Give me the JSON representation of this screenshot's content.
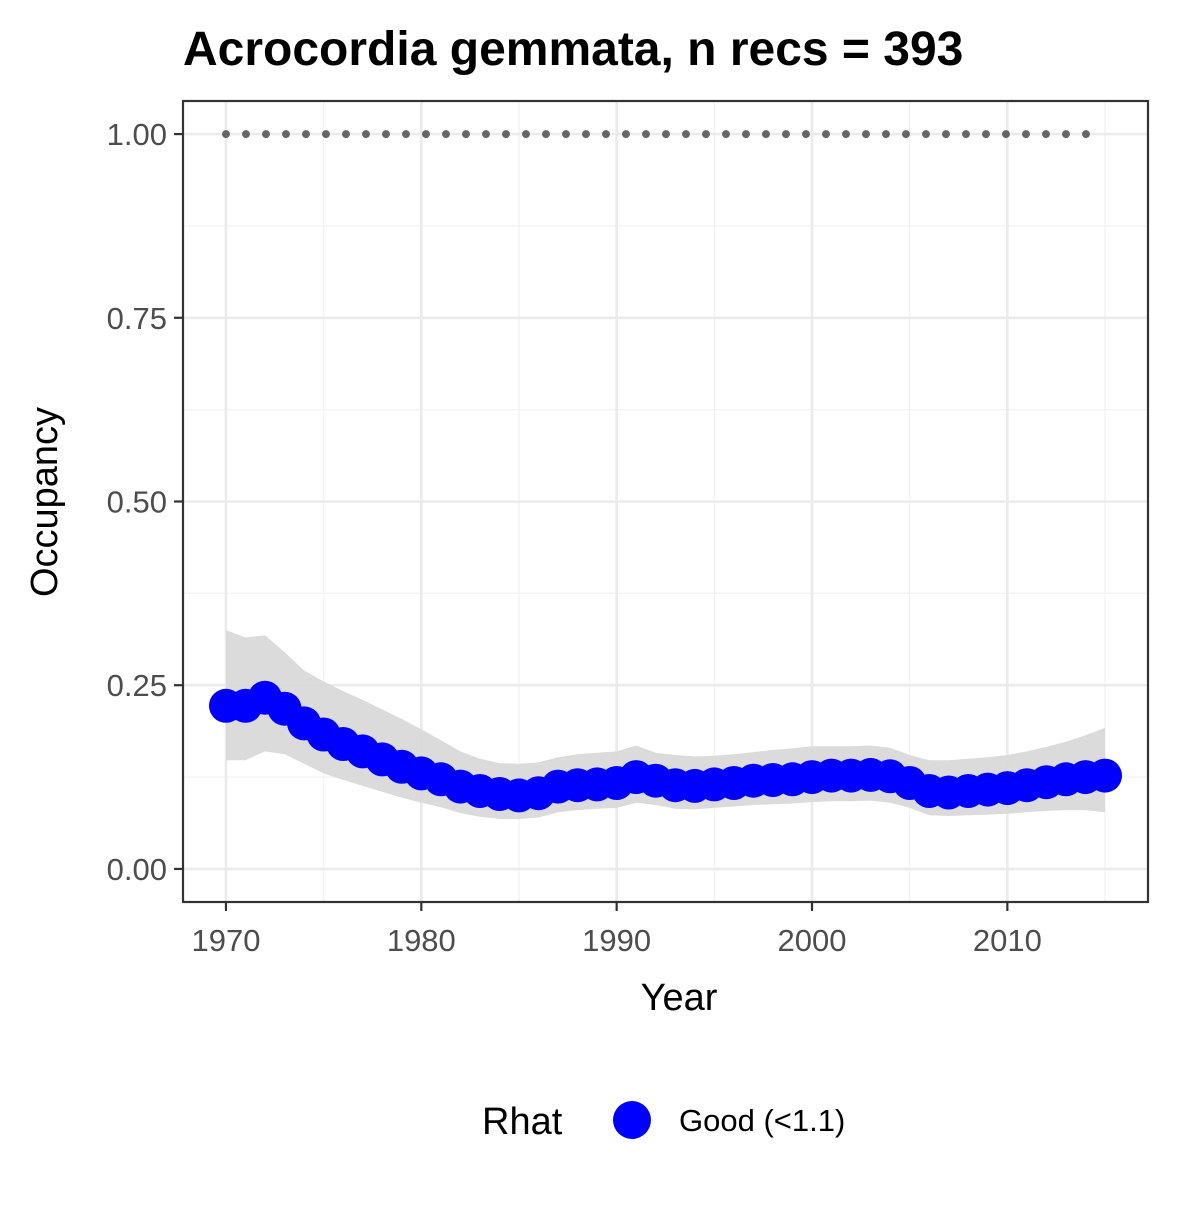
{
  "chart_data": {
    "type": "line",
    "title": "Acrocordia gemmata, n recs = 393",
    "xlabel": "Year",
    "ylabel": "Occupancy",
    "xlim": [
      1967.8,
      2017.2
    ],
    "ylim": [
      -0.045,
      1.045
    ],
    "x_ticks": [
      1970,
      1980,
      1990,
      2000,
      2010
    ],
    "x_tick_labels": [
      "1970",
      "1980",
      "1990",
      "2000",
      "2010"
    ],
    "y_ticks": [
      0.0,
      0.25,
      0.5,
      0.75,
      1.0
    ],
    "y_tick_labels": [
      "0.00",
      "0.25",
      "0.50",
      "0.75",
      "1.00"
    ],
    "grid": true,
    "legend": {
      "position": "bottom",
      "title": "Rhat",
      "entries": [
        {
          "label": "Good (<1.1)",
          "color": "#0000ff"
        }
      ]
    },
    "reference_line": {
      "y": 1.0,
      "style": "dotted",
      "color": "#666666"
    },
    "x": [
      1970,
      1971,
      1972,
      1973,
      1974,
      1975,
      1976,
      1977,
      1978,
      1979,
      1980,
      1981,
      1982,
      1983,
      1984,
      1985,
      1986,
      1987,
      1988,
      1989,
      1990,
      1991,
      1992,
      1993,
      1994,
      1995,
      1996,
      1997,
      1998,
      1999,
      2000,
      2001,
      2002,
      2003,
      2004,
      2005,
      2006,
      2007,
      2008,
      2009,
      2010,
      2011,
      2012,
      2013,
      2014,
      2015
    ],
    "series": [
      {
        "name": "Good (<1.1)",
        "color": "#0000ff",
        "values": [
          0.222,
          0.222,
          0.233,
          0.218,
          0.198,
          0.183,
          0.17,
          0.16,
          0.149,
          0.139,
          0.13,
          0.122,
          0.112,
          0.106,
          0.102,
          0.1,
          0.103,
          0.112,
          0.114,
          0.115,
          0.117,
          0.125,
          0.12,
          0.114,
          0.113,
          0.115,
          0.117,
          0.12,
          0.121,
          0.122,
          0.125,
          0.127,
          0.127,
          0.128,
          0.126,
          0.117,
          0.106,
          0.104,
          0.106,
          0.108,
          0.11,
          0.114,
          0.118,
          0.122,
          0.125,
          0.127
        ]
      }
    ],
    "band": {
      "color": "#d9d9d9",
      "upper": [
        0.325,
        0.315,
        0.318,
        0.295,
        0.27,
        0.255,
        0.242,
        0.23,
        0.217,
        0.204,
        0.19,
        0.175,
        0.16,
        0.15,
        0.144,
        0.143,
        0.145,
        0.152,
        0.156,
        0.158,
        0.16,
        0.168,
        0.158,
        0.155,
        0.153,
        0.154,
        0.156,
        0.159,
        0.162,
        0.164,
        0.167,
        0.167,
        0.167,
        0.168,
        0.165,
        0.155,
        0.148,
        0.148,
        0.15,
        0.152,
        0.155,
        0.16,
        0.166,
        0.173,
        0.182,
        0.192
      ],
      "lower": [
        0.148,
        0.148,
        0.16,
        0.156,
        0.143,
        0.13,
        0.121,
        0.113,
        0.105,
        0.097,
        0.09,
        0.084,
        0.076,
        0.071,
        0.068,
        0.068,
        0.07,
        0.077,
        0.08,
        0.082,
        0.083,
        0.09,
        0.087,
        0.082,
        0.081,
        0.083,
        0.085,
        0.087,
        0.088,
        0.089,
        0.091,
        0.092,
        0.092,
        0.093,
        0.09,
        0.083,
        0.073,
        0.072,
        0.073,
        0.074,
        0.075,
        0.077,
        0.079,
        0.08,
        0.08,
        0.077
      ]
    }
  }
}
